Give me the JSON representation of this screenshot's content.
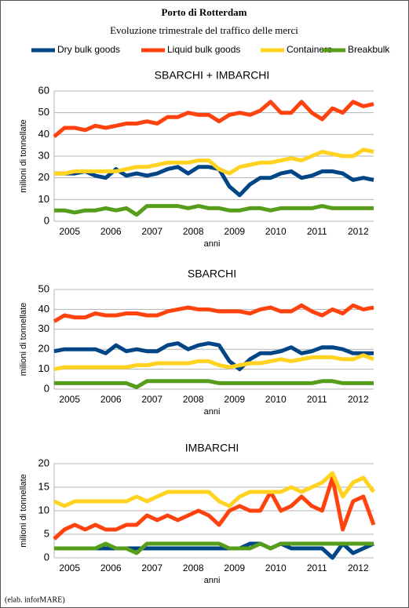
{
  "header": {
    "title": "Porto di Rotterdam",
    "subtitle": "Evoluzione trimestrale del traffico delle merci"
  },
  "footer": "(elab. inforMARE)",
  "chart_data": [
    {
      "type": "line",
      "title": "SBARCHI + IMBARCHI",
      "ylabel": "milioni di tonnellate",
      "xlabel": "anni",
      "categories": [
        null,
        "2005",
        null,
        null,
        null,
        "2006",
        null,
        null,
        null,
        "2007",
        null,
        null,
        null,
        "2008",
        null,
        null,
        null,
        "2009",
        null,
        null,
        null,
        "2010",
        null,
        null,
        null,
        "2011",
        null,
        null,
        null,
        "2012",
        null,
        null
      ],
      "ylim": [
        0,
        60
      ],
      "yticks": [
        0,
        10,
        20,
        30,
        40,
        50,
        60
      ],
      "legend": "top",
      "series": [
        {
          "name": "Dry bulk goods",
          "color": "#004586",
          "values": [
            22,
            22,
            22,
            23,
            21,
            20,
            24,
            21,
            22,
            21,
            22,
            24,
            25,
            22,
            25,
            25,
            24,
            16,
            12,
            17,
            20,
            20,
            22,
            23,
            20,
            21,
            23,
            23,
            22,
            19,
            20,
            19
          ]
        },
        {
          "name": "Liquid bulk goods",
          "color": "#ff420e",
          "values": [
            39,
            43,
            43,
            42,
            44,
            43,
            44,
            45,
            45,
            46,
            45,
            48,
            48,
            50,
            49,
            49,
            46,
            49,
            50,
            49,
            51,
            55,
            50,
            50,
            55,
            50,
            47,
            52,
            50,
            55,
            53,
            54
          ]
        },
        {
          "name": "Containers",
          "color": "#ffd320",
          "values": [
            22,
            22,
            23,
            23,
            23,
            23,
            23,
            24,
            25,
            25,
            26,
            27,
            27,
            27,
            28,
            28,
            24,
            22,
            25,
            26,
            27,
            27,
            28,
            29,
            28,
            30,
            32,
            31,
            30,
            30,
            33,
            32
          ]
        },
        {
          "name": "Breakbulk",
          "color": "#579d1c",
          "values": [
            5,
            5,
            4,
            5,
            5,
            6,
            5,
            6,
            3,
            7,
            7,
            7,
            7,
            6,
            7,
            6,
            6,
            5,
            5,
            6,
            6,
            5,
            6,
            6,
            6,
            6,
            7,
            6,
            6,
            6,
            6,
            6
          ]
        }
      ]
    },
    {
      "type": "line",
      "title": "SBARCHI",
      "ylabel": "milioni di tonnellate",
      "xlabel": "anni",
      "categories": [
        null,
        "2005",
        null,
        null,
        null,
        "2006",
        null,
        null,
        null,
        "2007",
        null,
        null,
        null,
        "2008",
        null,
        null,
        null,
        "2009",
        null,
        null,
        null,
        "2010",
        null,
        null,
        null,
        "2011",
        null,
        null,
        null,
        "2012",
        null,
        null
      ],
      "ylim": [
        0,
        50
      ],
      "yticks": [
        0,
        10,
        20,
        30,
        40,
        50
      ],
      "series": [
        {
          "name": "Dry bulk goods",
          "color": "#004586",
          "values": [
            19,
            20,
            20,
            20,
            20,
            18,
            22,
            19,
            20,
            19,
            19,
            22,
            23,
            20,
            22,
            23,
            22,
            14,
            10,
            15,
            18,
            18,
            19,
            21,
            18,
            19,
            21,
            21,
            20,
            18,
            18,
            18
          ]
        },
        {
          "name": "Liquid bulk goods",
          "color": "#ff420e",
          "values": [
            34,
            37,
            36,
            36,
            38,
            37,
            37,
            38,
            38,
            37,
            37,
            39,
            40,
            41,
            40,
            40,
            39,
            39,
            39,
            38,
            40,
            41,
            39,
            39,
            42,
            39,
            37,
            40,
            38,
            42,
            40,
            41
          ]
        },
        {
          "name": "Containers",
          "color": "#ffd320",
          "values": [
            10,
            11,
            11,
            11,
            11,
            11,
            11,
            11,
            12,
            12,
            13,
            13,
            13,
            13,
            14,
            14,
            12,
            11,
            12,
            13,
            13,
            14,
            15,
            14,
            15,
            16,
            16,
            16,
            15,
            15,
            17,
            15
          ]
        },
        {
          "name": "Breakbulk",
          "color": "#579d1c",
          "values": [
            3,
            3,
            3,
            3,
            3,
            3,
            3,
            3,
            1,
            4,
            4,
            4,
            4,
            4,
            4,
            4,
            3,
            3,
            3,
            3,
            3,
            3,
            3,
            3,
            3,
            3,
            4,
            4,
            3,
            3,
            3,
            3
          ]
        }
      ]
    },
    {
      "type": "line",
      "title": "IMBARCHI",
      "ylabel": "milioni di tonnellate",
      "xlabel": "anni",
      "categories": [
        null,
        "2005",
        null,
        null,
        null,
        "2006",
        null,
        null,
        null,
        "2007",
        null,
        null,
        null,
        "2008",
        null,
        null,
        null,
        "2009",
        null,
        null,
        null,
        "2010",
        null,
        null,
        null,
        "2011",
        null,
        null,
        null,
        "2012",
        null,
        null
      ],
      "ylim": [
        0,
        20
      ],
      "yticks": [
        0,
        5,
        10,
        15,
        20
      ],
      "series": [
        {
          "name": "Dry bulk goods",
          "color": "#004586",
          "values": [
            2,
            2,
            2,
            2,
            2,
            2,
            2,
            2,
            2,
            2,
            2,
            2,
            2,
            2,
            2,
            2,
            2,
            2,
            2,
            3,
            3,
            2,
            3,
            2,
            2,
            2,
            2,
            0,
            3,
            1,
            2,
            3
          ]
        },
        {
          "name": "Liquid bulk goods",
          "color": "#ff420e",
          "values": [
            4,
            6,
            7,
            6,
            7,
            6,
            6,
            7,
            7,
            9,
            8,
            9,
            8,
            9,
            10,
            9,
            7,
            10,
            11,
            10,
            10,
            14,
            10,
            11,
            13,
            11,
            10,
            17,
            6,
            12,
            13,
            7
          ]
        },
        {
          "name": "Containers",
          "color": "#ffd320",
          "values": [
            12,
            11,
            12,
            12,
            12,
            12,
            12,
            12,
            13,
            12,
            13,
            14,
            14,
            14,
            14,
            14,
            12,
            11,
            13,
            14,
            14,
            14,
            14,
            15,
            14,
            15,
            16,
            18,
            13,
            16,
            17,
            14
          ]
        },
        {
          "name": "Breakbulk",
          "color": "#579d1c",
          "values": [
            2,
            2,
            2,
            2,
            2,
            3,
            2,
            2,
            1,
            3,
            3,
            3,
            3,
            3,
            3,
            3,
            3,
            2,
            2,
            2,
            3,
            2,
            3,
            3,
            3,
            3,
            3,
            3,
            3,
            3,
            3,
            3
          ]
        }
      ]
    }
  ]
}
